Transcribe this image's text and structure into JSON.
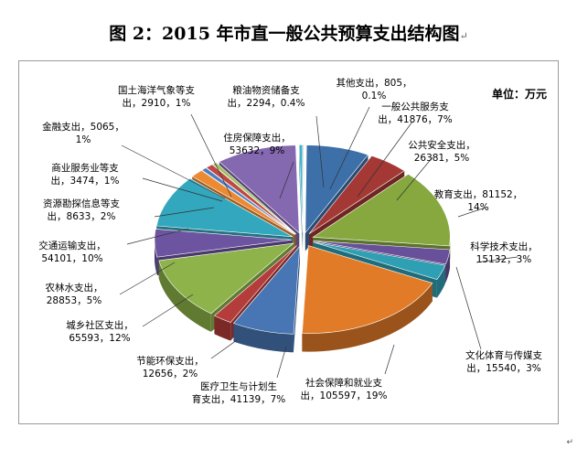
{
  "figure_title": "图 2：2015 年市直一般公共预算支出结构图",
  "title_mark": "↵",
  "end_mark": "↵",
  "chart_data": {
    "type": "pie",
    "title": "",
    "unit_label": "单位：万元",
    "slices": [
      {
        "name": "其他支出",
        "value": 805,
        "percent": "0.1%",
        "color": "#c4c4c4",
        "label_lines": [
          "其他支出，805，",
          "0.1%"
        ]
      },
      {
        "name": "一般公共服务支出",
        "value": 41876,
        "percent": "7%",
        "color": "#3d6fa8",
        "label_lines": [
          "一般公共服务支",
          "出，41876，7%"
        ]
      },
      {
        "name": "公共安全支出",
        "value": 26381,
        "percent": "5%",
        "color": "#a33834",
        "label_lines": [
          "公共安全支出，",
          "26381，5%"
        ]
      },
      {
        "name": "教育支出",
        "value": 81152,
        "percent": "14%",
        "color": "#86a83e",
        "label_lines": [
          "教育支出，81152，",
          "14%"
        ]
      },
      {
        "name": "科学技术支出",
        "value": 15132,
        "percent": "3%",
        "color": "#68509a",
        "label_lines": [
          "科学技术支出，",
          "15132，3%"
        ]
      },
      {
        "name": "文化体育与传媒支出",
        "value": 15540,
        "percent": "3%",
        "color": "#2f9fb4",
        "label_lines": [
          "文化体育与传媒支",
          "出，15540，3%"
        ]
      },
      {
        "name": "社会保障和就业支出",
        "value": 105597,
        "percent": "19%",
        "color": "#e27b27",
        "label_lines": [
          "社会保障和就业支",
          "出，105597，19%"
        ]
      },
      {
        "name": "医疗卫生与计划生育支出",
        "value": 41139,
        "percent": "7%",
        "color": "#4875b4",
        "label_lines": [
          "医疗卫生与计划生",
          "育支出，41139，7%"
        ]
      },
      {
        "name": "节能环保支出",
        "value": 12656,
        "percent": "2%",
        "color": "#b43c3a",
        "label_lines": [
          "节能环保支出，",
          "12656，2%"
        ]
      },
      {
        "name": "城乡社区支出",
        "value": 65593,
        "percent": "12%",
        "color": "#8db34a",
        "label_lines": [
          "城乡社区支出，",
          "65593，12%"
        ]
      },
      {
        "name": "农林水支出",
        "value": 28853,
        "percent": "5%",
        "color": "#6c54a0",
        "label_lines": [
          "农林水支出，",
          "28853，5%"
        ]
      },
      {
        "name": "交通运输支出",
        "value": 54101,
        "percent": "10%",
        "color": "#33a7bd",
        "label_lines": [
          "交通运输支出，",
          "54101，10%"
        ]
      },
      {
        "name": "资源勘探信息等支出",
        "value": 8633,
        "percent": "2%",
        "color": "#ec8a33",
        "label_lines": [
          "资源勘探信息等支",
          "出，8633，2%"
        ]
      },
      {
        "name": "商业服务业等支出",
        "value": 3474,
        "percent": "1%",
        "color": "#4a7cc0",
        "label_lines": [
          "商业服务业等支",
          "出，3474，1%"
        ]
      },
      {
        "name": "金融支出",
        "value": 5065,
        "percent": "1%",
        "color": "#c04844",
        "label_lines": [
          "金融支出，5065，",
          "1%"
        ]
      },
      {
        "name": "国土海洋气象等支出",
        "value": 2910,
        "percent": "1%",
        "color": "#9cc25a",
        "label_lines": [
          "国土海洋气象等支",
          "出，2910，1%"
        ]
      },
      {
        "name": "住房保障支出",
        "value": 53632,
        "percent": "9%",
        "color": "#8468b0",
        "label_lines": [
          "住房保障支出，",
          "53632，9%"
        ]
      },
      {
        "name": "粮油物资储备支出",
        "value": 2294,
        "percent": "0.4%",
        "color": "#41b3c8",
        "label_lines": [
          "粮油物资储备支",
          "出，2294，0.4%"
        ]
      }
    ]
  }
}
